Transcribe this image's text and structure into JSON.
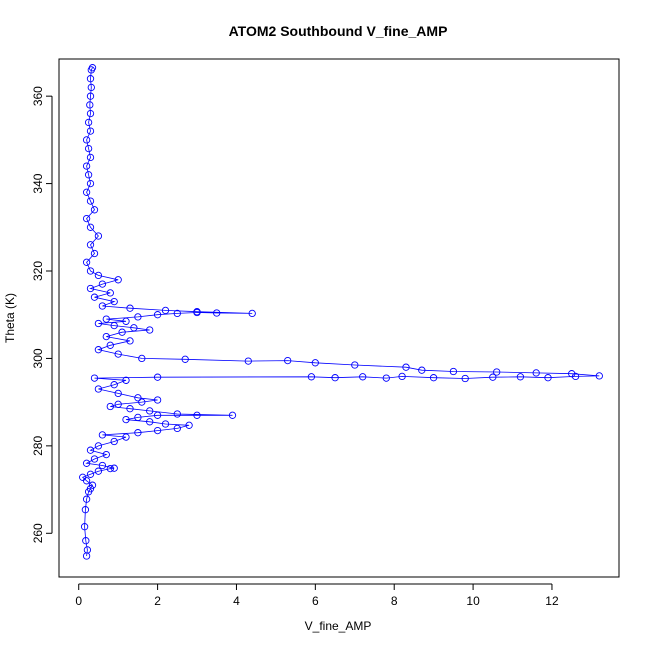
{
  "chart_data": {
    "type": "line",
    "title": "ATOM2 Southbound V_fine_AMP",
    "xlabel": "V_fine_AMP",
    "ylabel": "Theta (K)",
    "xlim": [
      -0.5,
      13.7
    ],
    "ylim": [
      250,
      368.5
    ],
    "xticks": [
      0,
      2,
      4,
      6,
      8,
      10,
      12
    ],
    "yticks": [
      260,
      280,
      300,
      320,
      340,
      360
    ],
    "grid": false,
    "legend": "none",
    "color": "#0000ff",
    "marker": "open-circle",
    "series": [
      {
        "values": [
          [
            0.2,
            254.8
          ],
          [
            0.22,
            256.2
          ],
          [
            0.18,
            258.3
          ],
          [
            0.15,
            261.5
          ],
          [
            0.17,
            265.4
          ],
          [
            0.2,
            267.8
          ],
          [
            0.25,
            269.5
          ],
          [
            0.3,
            270.2
          ],
          [
            0.35,
            271.0
          ],
          [
            0.2,
            272.0
          ],
          [
            0.1,
            272.8
          ],
          [
            0.3,
            273.5
          ],
          [
            0.5,
            274.2
          ],
          [
            0.8,
            274.8
          ],
          [
            0.9,
            274.9
          ],
          [
            0.6,
            275.5
          ],
          [
            0.2,
            276.0
          ],
          [
            0.4,
            277.0
          ],
          [
            0.7,
            278.0
          ],
          [
            0.3,
            279.0
          ],
          [
            0.5,
            280.0
          ],
          [
            0.9,
            281.0
          ],
          [
            1.2,
            282.0
          ],
          [
            0.6,
            282.5
          ],
          [
            1.5,
            283.0
          ],
          [
            2.0,
            283.5
          ],
          [
            2.5,
            284.0
          ],
          [
            2.8,
            284.7
          ],
          [
            2.2,
            285.0
          ],
          [
            1.8,
            285.5
          ],
          [
            1.2,
            286.0
          ],
          [
            1.5,
            286.5
          ],
          [
            2.0,
            287.0
          ],
          [
            3.0,
            287.0
          ],
          [
            3.9,
            287.0
          ],
          [
            2.5,
            287.3
          ],
          [
            1.8,
            288.0
          ],
          [
            1.3,
            288.5
          ],
          [
            0.8,
            289.0
          ],
          [
            1.0,
            289.5
          ],
          [
            1.6,
            290.0
          ],
          [
            2.0,
            290.5
          ],
          [
            1.5,
            291.0
          ],
          [
            1.0,
            292.0
          ],
          [
            0.5,
            293.0
          ],
          [
            0.9,
            294.0
          ],
          [
            1.2,
            295.0
          ],
          [
            0.4,
            295.5
          ],
          [
            2.0,
            295.7
          ],
          [
            5.9,
            295.8
          ],
          [
            6.5,
            295.6
          ],
          [
            7.2,
            295.8
          ],
          [
            7.8,
            295.5
          ],
          [
            8.2,
            295.9
          ],
          [
            9.0,
            295.6
          ],
          [
            9.8,
            295.4
          ],
          [
            10.5,
            295.7
          ],
          [
            11.2,
            295.8
          ],
          [
            11.9,
            295.6
          ],
          [
            12.6,
            295.9
          ],
          [
            13.2,
            296.0
          ],
          [
            12.5,
            296.5
          ],
          [
            11.6,
            296.7
          ],
          [
            10.6,
            296.9
          ],
          [
            9.5,
            297.0
          ],
          [
            8.7,
            297.3
          ],
          [
            8.3,
            298.0
          ],
          [
            7.0,
            298.5
          ],
          [
            6.0,
            299.0
          ],
          [
            5.3,
            299.5
          ],
          [
            4.3,
            299.4
          ],
          [
            2.7,
            299.8
          ],
          [
            1.6,
            300.0
          ],
          [
            1.0,
            301.0
          ],
          [
            0.5,
            302.0
          ],
          [
            0.8,
            303.0
          ],
          [
            1.3,
            304.0
          ],
          [
            0.7,
            305.0
          ],
          [
            1.1,
            306.0
          ],
          [
            1.8,
            306.5
          ],
          [
            1.4,
            307.0
          ],
          [
            0.9,
            307.5
          ],
          [
            0.5,
            308.0
          ],
          [
            1.2,
            308.5
          ],
          [
            0.7,
            309.0
          ],
          [
            1.5,
            309.5
          ],
          [
            2.0,
            310.0
          ],
          [
            2.5,
            310.3
          ],
          [
            3.0,
            310.5
          ],
          [
            3.5,
            310.4
          ],
          [
            4.4,
            310.3
          ],
          [
            3.0,
            310.7
          ],
          [
            2.2,
            311.0
          ],
          [
            1.3,
            311.5
          ],
          [
            0.6,
            312.0
          ],
          [
            0.9,
            313.0
          ],
          [
            0.4,
            314.0
          ],
          [
            0.8,
            315.0
          ],
          [
            0.3,
            316.0
          ],
          [
            0.6,
            317.0
          ],
          [
            1.0,
            318.0
          ],
          [
            0.5,
            319.0
          ],
          [
            0.3,
            320.0
          ],
          [
            0.2,
            322.0
          ],
          [
            0.4,
            324.0
          ],
          [
            0.3,
            326.0
          ],
          [
            0.5,
            328.0
          ],
          [
            0.3,
            330.0
          ],
          [
            0.2,
            332.0
          ],
          [
            0.4,
            334.0
          ],
          [
            0.3,
            336.0
          ],
          [
            0.2,
            338.0
          ],
          [
            0.3,
            340.0
          ],
          [
            0.25,
            342.0
          ],
          [
            0.2,
            344.0
          ],
          [
            0.3,
            346.0
          ],
          [
            0.25,
            348.0
          ],
          [
            0.2,
            350.0
          ],
          [
            0.3,
            352.0
          ],
          [
            0.25,
            354.0
          ],
          [
            0.3,
            356.0
          ],
          [
            0.28,
            358.0
          ],
          [
            0.3,
            360.0
          ],
          [
            0.32,
            362.0
          ],
          [
            0.3,
            364.0
          ],
          [
            0.32,
            366.0
          ],
          [
            0.35,
            366.5
          ]
        ]
      }
    ]
  }
}
